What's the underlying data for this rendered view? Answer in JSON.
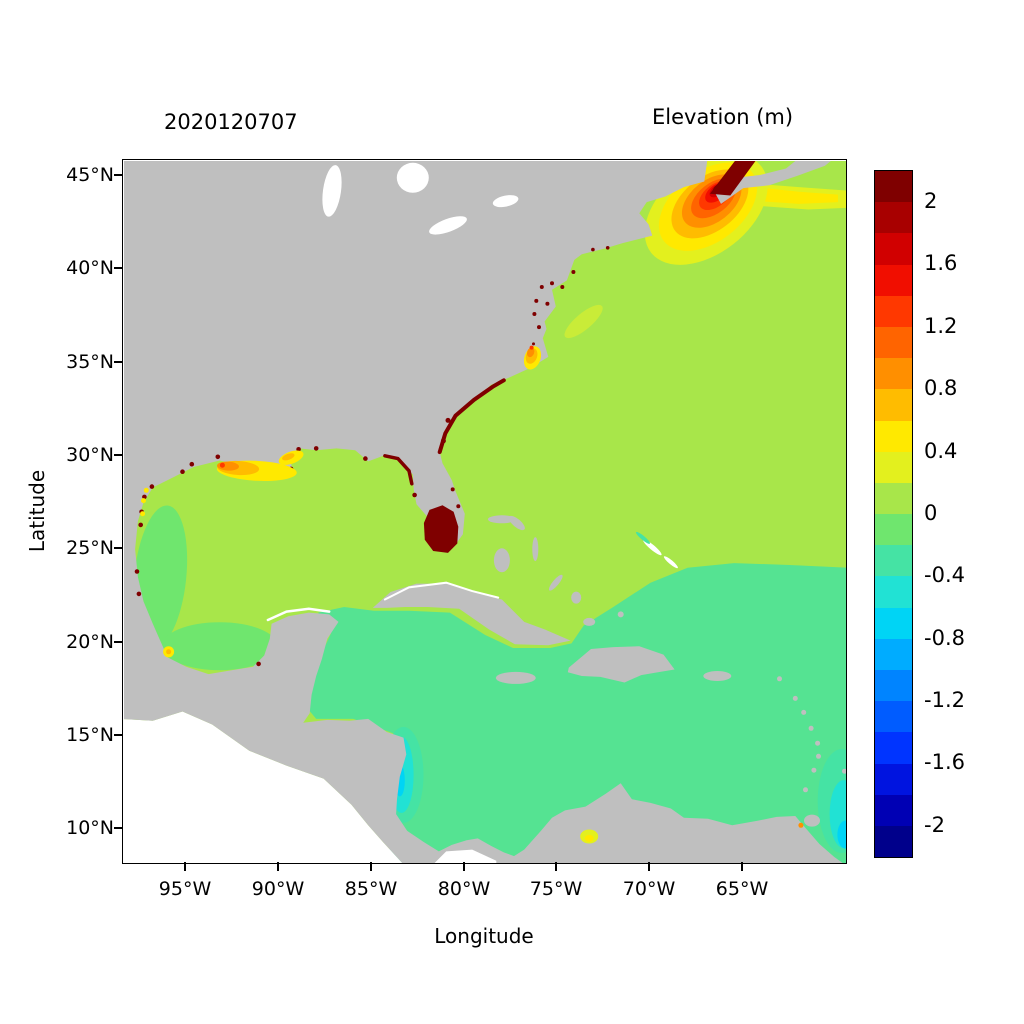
{
  "header": {
    "date_label": "2020120707",
    "colorbar_title": "Elevation (m)"
  },
  "axes": {
    "x": {
      "label": "Longitude",
      "ticks": [
        "95°W",
        "90°W",
        "85°W",
        "80°W",
        "75°W",
        "70°W",
        "65°W"
      ]
    },
    "y": {
      "label": "Latitude",
      "ticks": [
        "45°N",
        "40°N",
        "35°N",
        "30°N",
        "25°N",
        "20°N",
        "15°N",
        "10°N"
      ]
    }
  },
  "chart_data": {
    "type": "heatmap",
    "title": "Elevation (m)",
    "timestamp_label": "2020120707",
    "xlabel": "Longitude",
    "ylabel": "Latitude",
    "x_ticks": [
      "95°W",
      "90°W",
      "85°W",
      "80°W",
      "75°W",
      "70°W",
      "65°W"
    ],
    "y_ticks": [
      "45°N",
      "40°N",
      "35°N",
      "30°N",
      "25°N",
      "20°N",
      "15°N",
      "10°N"
    ],
    "lon_range_deg": [
      -98.3,
      -59.4
    ],
    "lat_range_deg": [
      8.2,
      45.8
    ],
    "units": "m",
    "colorbar": {
      "labels": [
        "2",
        "1.6",
        "1.2",
        "0.8",
        "0.4",
        "0",
        "-0.4",
        "-0.8",
        "-1.2",
        "-1.6",
        "-2"
      ],
      "levels": [
        2,
        1.6,
        1.2,
        0.8,
        0.4,
        0,
        -0.4,
        -0.8,
        -1.2,
        -1.6,
        -2
      ],
      "step": 0.2,
      "colors_top_to_bottom": [
        "#7f0000",
        "#a80000",
        "#d10000",
        "#f10e00",
        "#ff3800",
        "#ff6400",
        "#ff8f00",
        "#ffbc00",
        "#ffe900",
        "#e3f01e",
        "#a8e64a",
        "#6fe66e",
        "#45e3a4",
        "#21e2d4",
        "#00d4f5",
        "#00acff",
        "#0084ff",
        "#005cff",
        "#0034ff",
        "#0014e0",
        "#0000b4",
        "#00008b"
      ]
    },
    "land_color": "#bfbfbf",
    "ocean_base_color": "#a8e64a",
    "unmodeled_color": "#ffffff",
    "features": [
      {
        "region": "Bay of Fundy / Gulf of Maine",
        "approx_elevation_m": "1.2 to >2",
        "appearance": "concentric dark-red/red/orange/yellow maximum reaching top edge"
      },
      {
        "region": "Open western North Atlantic",
        "approx_elevation_m": "0 to 0.2"
      },
      {
        "region": "Gulf of Mexico (central)",
        "approx_elevation_m": "0 to 0.2"
      },
      {
        "region": "Western Gulf of Mexico / Bay of Campeche",
        "approx_elevation_m": "-0.2 to 0"
      },
      {
        "region": "Caribbean Sea and Atlantic east of Lesser Antilles",
        "approx_elevation_m": "-0.2 to 0"
      },
      {
        "region": "South Florida / Everglades coast",
        "approx_elevation_m": ">2",
        "appearance": "solid dark-red blob"
      },
      {
        "region": "Louisiana shelf",
        "approx_elevation_m": "0.4 to 1.2",
        "appearance": "yellow-orange patch"
      },
      {
        "region": "Pamlico Sound, North Carolina",
        "approx_elevation_m": "0.4 to 1.6",
        "appearance": "small yellow-orange-red spot"
      },
      {
        "region": "Georgia / Carolinas and Gulf coastal fringe",
        "approx_elevation_m": ">2",
        "appearance": "thin dark-red coastal specks"
      },
      {
        "region": "Offshore Nicaragua",
        "approx_elevation_m": "-0.6 to -0.4"
      },
      {
        "region": "Southeast corner near Trinidad",
        "approx_elevation_m": "-0.8 to -0.4"
      },
      {
        "region": "Veracruz coast spot",
        "approx_elevation_m": "0.4 to 0.6"
      }
    ]
  }
}
